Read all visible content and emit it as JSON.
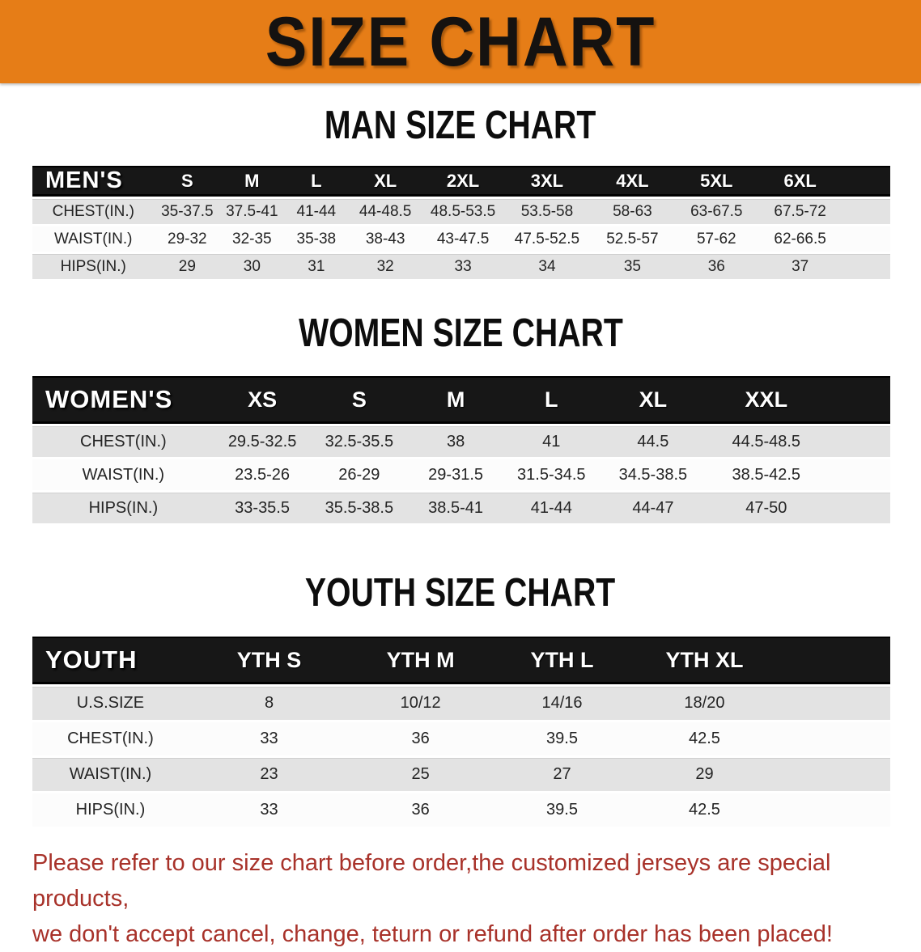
{
  "banner": {
    "title": "SIZE CHART"
  },
  "colors": {
    "banner_bg": "#e67d17",
    "header_bg": "#171717",
    "row_gray": "#e3e3e3",
    "disclaimer_red": "#a8322a"
  },
  "sections": [
    {
      "heading": "MAN SIZE CHART",
      "table": {
        "label": "MEN'S",
        "columns": [
          "S",
          "M",
          "L",
          "XL",
          "2XL",
          "3XL",
          "4XL",
          "5XL",
          "6XL"
        ],
        "rows": [
          {
            "label": "CHEST(IN.)",
            "values": [
              "35-37.5",
              "37.5-41",
              "41-44",
              "44-48.5",
              "48.5-53.5",
              "53.5-58",
              "58-63",
              "63-67.5",
              "67.5-72"
            ]
          },
          {
            "label": "WAIST(IN.)",
            "values": [
              "29-32",
              "32-35",
              "35-38",
              "38-43",
              "43-47.5",
              "47.5-52.5",
              "52.5-57",
              "57-62",
              "62-66.5"
            ]
          },
          {
            "label": "HIPS(IN.)",
            "values": [
              "29",
              "30",
              "31",
              "32",
              "33",
              "34",
              "35",
              "36",
              "37"
            ]
          }
        ]
      }
    },
    {
      "heading": "WOMEN SIZE CHART",
      "table": {
        "label": "WOMEN'S",
        "columns": [
          "XS",
          "S",
          "M",
          "L",
          "XL",
          "XXL"
        ],
        "rows": [
          {
            "label": "CHEST(IN.)",
            "values": [
              "29.5-32.5",
              "32.5-35.5",
              "38",
              "41",
              "44.5",
              "44.5-48.5"
            ]
          },
          {
            "label": "WAIST(IN.)",
            "values": [
              "23.5-26",
              "26-29",
              "29-31.5",
              "31.5-34.5",
              "34.5-38.5",
              "38.5-42.5"
            ]
          },
          {
            "label": "HIPS(IN.)",
            "values": [
              "33-35.5",
              "35.5-38.5",
              "38.5-41",
              "41-44",
              "44-47",
              "47-50"
            ]
          }
        ]
      }
    },
    {
      "heading": "YOUTH SIZE CHART",
      "table": {
        "label": "YOUTH",
        "columns": [
          "YTH S",
          "YTH M",
          "YTH L",
          "YTH XL"
        ],
        "rows": [
          {
            "label": "U.S.SIZE",
            "values": [
              "8",
              "10/12",
              "14/16",
              "18/20"
            ]
          },
          {
            "label": "CHEST(IN.)",
            "values": [
              "33",
              "36",
              "39.5",
              "42.5"
            ]
          },
          {
            "label": "WAIST(IN.)",
            "values": [
              "23",
              "25",
              "27",
              "29"
            ]
          },
          {
            "label": "HIPS(IN.)",
            "values": [
              "33",
              "36",
              "39.5",
              "42.5"
            ]
          }
        ]
      }
    }
  ],
  "disclaimer": {
    "line1": "Please refer to our size chart before order,the customized jerseys are special products,",
    "line2": "we don't accept cancel, change, teturn or refund after order has been placed!"
  }
}
